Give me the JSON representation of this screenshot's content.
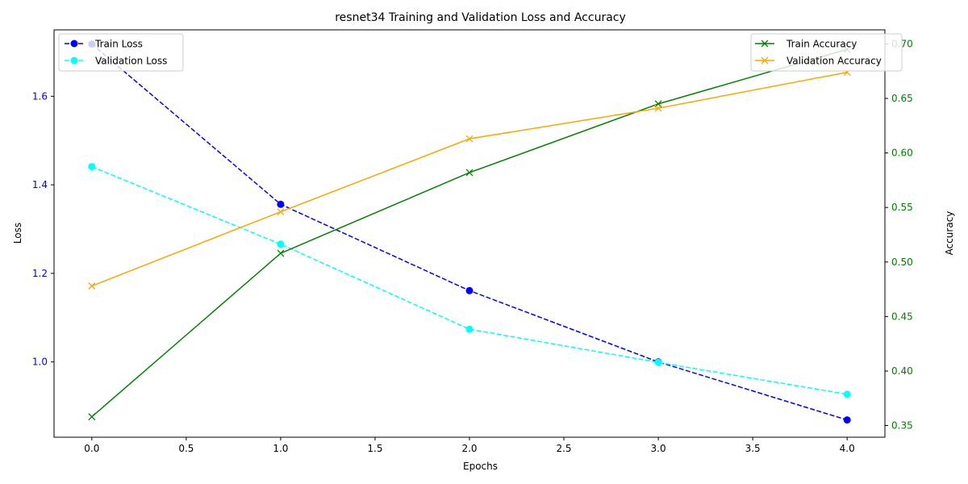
{
  "chart_data": {
    "type": "line",
    "title": "resnet34 Training and Validation Loss and Accuracy",
    "xlabel": "Epochs",
    "ylabel_left": "Loss",
    "ylabel_right": "Accuracy",
    "x": [
      0,
      1,
      2,
      3,
      4
    ],
    "xlim": [
      -0.2,
      4.2
    ],
    "ylim_left": [
      0.83,
      1.75
    ],
    "ylim_right": [
      0.3393,
      0.7129
    ],
    "x_ticks": [
      "0.0",
      "0.5",
      "1.0",
      "1.5",
      "2.0",
      "2.5",
      "3.0",
      "3.5",
      "4.0"
    ],
    "y_left_ticks": [
      "1.0",
      "1.2",
      "1.4",
      "1.6"
    ],
    "y_right_ticks": [
      "0.35",
      "0.40",
      "0.45",
      "0.50",
      "0.55",
      "0.60",
      "0.65",
      "0.70"
    ],
    "grid": false,
    "left_axis_color": "#0000ff",
    "right_axis_color": "#008000",
    "series": [
      {
        "name": "Train Loss",
        "axis": "left",
        "color": "#0000ff",
        "marker": "circle",
        "dashed": true,
        "values": [
          1.718,
          1.356,
          1.161,
          1.0,
          0.869
        ]
      },
      {
        "name": "Validation Loss",
        "axis": "left",
        "color": "#00ffff",
        "marker": "circle",
        "dashed": true,
        "values": [
          1.441,
          1.266,
          1.074,
          0.999,
          0.927
        ]
      },
      {
        "name": "Train Accuracy",
        "axis": "right",
        "color": "#008000",
        "marker": "x",
        "dashed": false,
        "values": [
          0.358,
          0.508,
          0.582,
          0.645,
          0.695
        ]
      },
      {
        "name": "Validation Accuracy",
        "axis": "right",
        "color": "#ffa500",
        "marker": "x",
        "dashed": false,
        "values": [
          0.478,
          0.546,
          0.613,
          0.641,
          0.674
        ]
      }
    ],
    "legend_left": [
      "Train Loss",
      "Validation Loss"
    ],
    "legend_right": [
      "Train Accuracy",
      "Validation Accuracy"
    ],
    "legend_left_placement": "upper-left",
    "legend_right_placement": "upper-right"
  }
}
